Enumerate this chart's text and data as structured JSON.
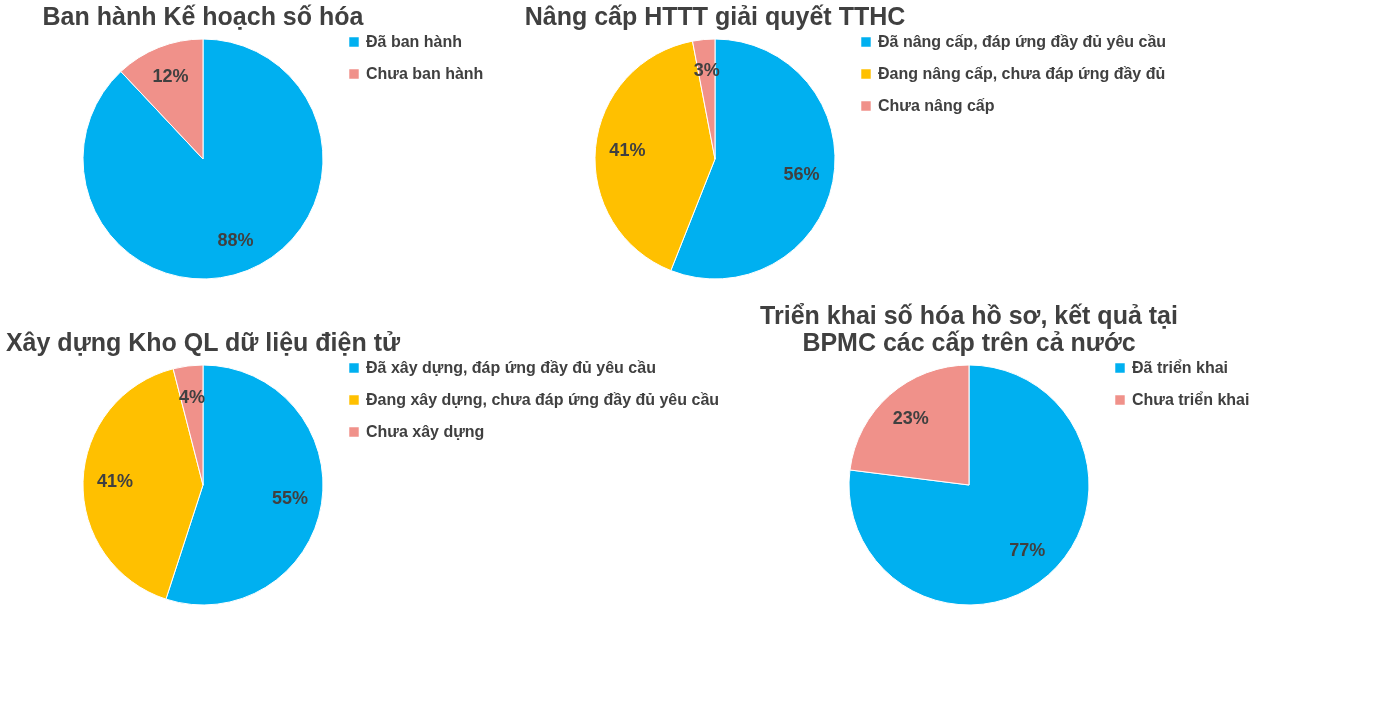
{
  "chart_data": [
    {
      "type": "pie",
      "title": "Ban hành Kế hoạch số hóa",
      "categories": [
        "Đã ban hành",
        "Chưa ban hành"
      ],
      "values": [
        88,
        12
      ],
      "colors": [
        "#00b0f0",
        "#f0918a"
      ],
      "value_labels": [
        "88%",
        "12%"
      ],
      "legend": "right"
    },
    {
      "type": "pie",
      "title": "Nâng cấp HTTT giải quyết TTHC",
      "categories": [
        "Đã nâng cấp, đáp ứng đầy đủ yêu cầu",
        "Đang nâng cấp, chưa đáp ứng đầy đủ",
        "Chưa nâng cấp"
      ],
      "values": [
        56,
        41,
        3
      ],
      "colors": [
        "#00b0f0",
        "#ffc000",
        "#f0918a"
      ],
      "value_labels": [
        "56%",
        "41%",
        "3%"
      ],
      "legend": "right"
    },
    {
      "type": "pie",
      "title": "Xây dựng Kho QL dữ liệu điện tử",
      "categories": [
        "Đã xây dựng, đáp ứng đầy đủ yêu cầu",
        "Đang xây dựng, chưa đáp ứng đầy đủ yêu cầu",
        "Chưa xây dựng"
      ],
      "values": [
        55,
        41,
        4
      ],
      "colors": [
        "#00b0f0",
        "#ffc000",
        "#f0918a"
      ],
      "value_labels": [
        "55%",
        "41%",
        "4%"
      ],
      "legend": "right"
    },
    {
      "type": "pie",
      "title": "Triển khai số hóa hồ sơ, kết quả tại BPMC các cấp trên cả nước",
      "categories": [
        "Đã triển khai",
        "Chưa triển khai"
      ],
      "values": [
        77,
        23
      ],
      "colors": [
        "#00b0f0",
        "#f0918a"
      ],
      "value_labels": [
        "77%",
        "23%"
      ],
      "legend": "right"
    }
  ]
}
